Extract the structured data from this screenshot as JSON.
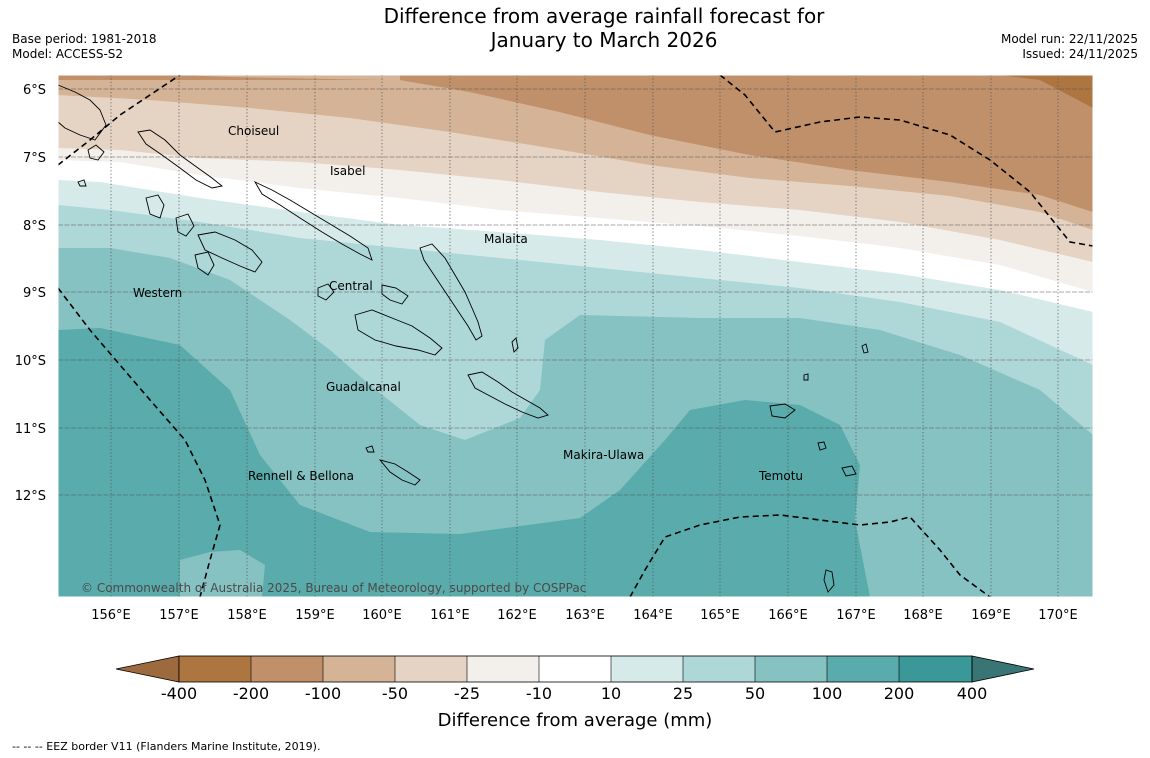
{
  "header": {
    "title_line1": "Difference from average rainfall forecast for",
    "title_line2": "January to March 2026",
    "base_period": "Base period: 1981-2018",
    "model": "Model: ACCESS-S2",
    "model_run": "Model run: 22/11/2025",
    "issued": "Issued: 24/11/2025"
  },
  "map": {
    "lat_labels": [
      "6°S",
      "7°S",
      "8°S",
      "9°S",
      "10°S",
      "11°S",
      "12°S"
    ],
    "lon_labels": [
      "156°E",
      "157°E",
      "158°E",
      "159°E",
      "160°E",
      "161°E",
      "162°E",
      "163°E",
      "164°E",
      "165°E",
      "166°E",
      "167°E",
      "168°E",
      "169°E",
      "170°E"
    ],
    "places": [
      "Choiseul",
      "Isabel",
      "Malaita",
      "Western",
      "Central",
      "Guadalcanal",
      "Makira-Ulawa",
      "Temotu",
      "Rennell & Bellona"
    ],
    "copyright": "© Commonwealth of Australia 2025, Bureau of Meteorology, supported by COSPPac"
  },
  "colorbar": {
    "title": "Difference from average (mm)",
    "labels": [
      "-400",
      "-200",
      "-100",
      "-50",
      "-25",
      "-10",
      "10",
      "25",
      "50",
      "100",
      "200",
      "400"
    ],
    "colors": [
      "#9c6a3e",
      "#ad7540",
      "#c0906a",
      "#d4b396",
      "#e5d3c3",
      "#f3efea",
      "#ffffff",
      "#d6eaea",
      "#aed7d8",
      "#86c2c2",
      "#5aabac",
      "#3a9898",
      "#3a7575"
    ]
  },
  "footnote": "-- -- -- EEZ border V11 (Flanders Marine Institute, 2019)."
}
